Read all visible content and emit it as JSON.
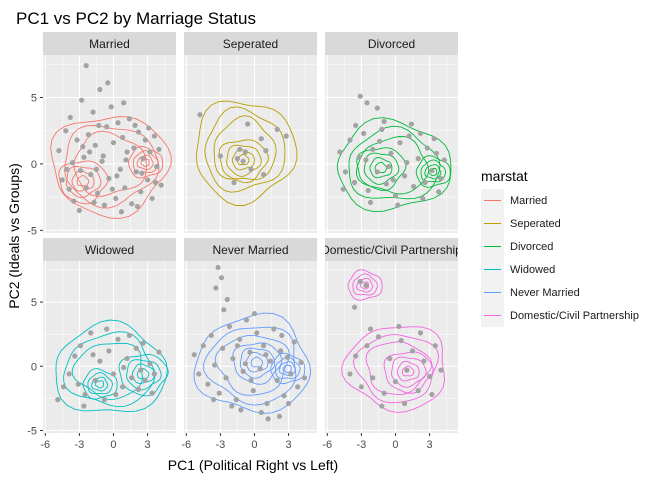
{
  "chart_data": {
    "type": "scatter",
    "title": "PC1 vs PC2 by Marriage Status",
    "xlabel": "PC1 (Political Right vs Left)",
    "ylabel": "PC2 (Ideals vs Groups)",
    "xlim": [
      -6.2,
      5.5
    ],
    "ylim": [
      -5.2,
      8.2
    ],
    "x_ticks": [
      -6,
      -3,
      0,
      3
    ],
    "x_tick_labels": [
      "-6",
      "-3",
      "0",
      "3"
    ],
    "y_ticks": [
      -5,
      0,
      5
    ],
    "y_tick_labels": [
      "-5",
      "0",
      "5"
    ],
    "grid": true,
    "layout": "facet_wrap 2 rows x 3 columns, shared axes",
    "legend": {
      "title": "marstat",
      "placement": "right",
      "entries": [
        {
          "label": "Married",
          "color": "#F8766D"
        },
        {
          "label": "Seperated",
          "color": "#B79F00"
        },
        {
          "label": "Divorced",
          "color": "#00BA38"
        },
        {
          "label": "Widowed",
          "color": "#00BFC4"
        },
        {
          "label": "Never Married",
          "color": "#619CFF"
        },
        {
          "label": "Domestic/Civil Partnership",
          "color": "#F564E3"
        }
      ]
    },
    "point_color": "#a3a3a3",
    "facets": [
      {
        "label": "Married",
        "color": "#F8766D",
        "density_centers": [
          {
            "x": -2.7,
            "y": -1.3
          },
          {
            "x": 2.8,
            "y": 0.1
          }
        ],
        "density_extent": {
          "x": [
            -5.5,
            4.8
          ],
          "y": [
            -3.8,
            3.7
          ]
        },
        "points": [
          [
            -4.8,
            1.0
          ],
          [
            -4.2,
            2.5
          ],
          [
            -4.5,
            -1.2
          ],
          [
            -3.8,
            3.5
          ],
          [
            -3.5,
            -2.8
          ],
          [
            -3.2,
            1.8
          ],
          [
            -3.0,
            -3.5
          ],
          [
            -2.8,
            4.8
          ],
          [
            -2.6,
            0.5
          ],
          [
            -2.4,
            -1.8
          ],
          [
            -2.2,
            2.2
          ],
          [
            -2.0,
            -0.8
          ],
          [
            -1.8,
            3.9
          ],
          [
            -1.6,
            1.4
          ],
          [
            -1.4,
            -2.2
          ],
          [
            -1.2,
            5.6
          ],
          [
            -1.0,
            0.2
          ],
          [
            -0.8,
            -3.1
          ],
          [
            -0.6,
            2.8
          ],
          [
            -0.4,
            -1.1
          ],
          [
            -0.2,
            4.3
          ],
          [
            0.0,
            1.6
          ],
          [
            0.2,
            -2.6
          ],
          [
            0.4,
            3.1
          ],
          [
            0.6,
            -0.4
          ],
          [
            0.8,
            2.0
          ],
          [
            1.0,
            -1.8
          ],
          [
            1.2,
            0.9
          ],
          [
            1.4,
            3.4
          ],
          [
            1.6,
            -3.0
          ],
          [
            1.8,
            1.2
          ],
          [
            2.0,
            -0.6
          ],
          [
            2.2,
            2.4
          ],
          [
            2.4,
            -2.1
          ],
          [
            2.6,
            0.4
          ],
          [
            2.8,
            1.8
          ],
          [
            3.0,
            -1.2
          ],
          [
            3.2,
            0.9
          ],
          [
            3.4,
            -2.6
          ],
          [
            3.6,
            2.1
          ],
          [
            3.8,
            -0.2
          ],
          [
            4.0,
            1.1
          ],
          [
            4.2,
            -1.6
          ],
          [
            -3.6,
            0.1
          ],
          [
            -2.9,
            -0.5
          ],
          [
            -2.1,
            0.9
          ],
          [
            -1.5,
            -0.4
          ],
          [
            -0.9,
            0.6
          ],
          [
            0.3,
            -0.9
          ],
          [
            1.1,
            0.3
          ],
          [
            -2.4,
            7.4
          ],
          [
            -3.9,
            -1.9
          ],
          [
            -1.7,
            -2.9
          ],
          [
            0.9,
            4.6
          ],
          [
            2.1,
            -3.2
          ],
          [
            -0.5,
            6.1
          ],
          [
            -1.3,
            2.9
          ],
          [
            0.7,
            -3.6
          ],
          [
            1.9,
            2.9
          ],
          [
            -4.1,
            -0.4
          ],
          [
            3.1,
            2.7
          ],
          [
            3.7,
            -1.4
          ],
          [
            -2.7,
            1.3
          ],
          [
            -0.1,
            -1.9
          ],
          [
            2.5,
            -0.7
          ]
        ]
      },
      {
        "label": "Seperated",
        "color": "#B79F00",
        "density_centers": [
          {
            "x": -1.0,
            "y": 0.3
          }
        ],
        "density_extent": {
          "x": [
            -5.3,
            3.5
          ],
          "y": [
            -2.8,
            4.8
          ]
        },
        "points": [
          [
            -4.8,
            3.7
          ],
          [
            -1.3,
            1.1
          ],
          [
            -1.5,
            0.4
          ],
          [
            -1.0,
            0.2
          ],
          [
            -0.8,
            0.9
          ],
          [
            -0.3,
            -0.4
          ],
          [
            0.6,
            1.9
          ],
          [
            1.0,
            1.0
          ],
          [
            -3.0,
            0.6
          ],
          [
            0.8,
            -0.8
          ],
          [
            -0.6,
            3.0
          ],
          [
            2.0,
            2.6
          ],
          [
            2.8,
            2.1
          ],
          [
            -1.8,
            -1.4
          ]
        ]
      },
      {
        "label": "Divorced",
        "color": "#00BA38",
        "density_centers": [
          {
            "x": -1.3,
            "y": -0.3
          },
          {
            "x": 3.3,
            "y": -0.6
          }
        ],
        "density_extent": {
          "x": [
            -5.2,
            4.8
          ],
          "y": [
            -3.5,
            3.2
          ]
        },
        "points": [
          [
            -3.1,
            5.1
          ],
          [
            -2.5,
            4.6
          ],
          [
            -1.6,
            4.2
          ],
          [
            -4.9,
            0.9
          ],
          [
            -4.4,
            -0.6
          ],
          [
            -4.0,
            1.8
          ],
          [
            -3.6,
            -1.4
          ],
          [
            -3.2,
            0.5
          ],
          [
            -2.8,
            2.3
          ],
          [
            -2.4,
            -2.0
          ],
          [
            -2.0,
            1.1
          ],
          [
            -1.6,
            -0.6
          ],
          [
            -1.2,
            2.6
          ],
          [
            -0.8,
            -1.5
          ],
          [
            -0.4,
            0.8
          ],
          [
            0.0,
            -2.4
          ],
          [
            0.4,
            1.6
          ],
          [
            0.8,
            -0.9
          ],
          [
            1.2,
            2.1
          ],
          [
            1.6,
            -1.7
          ],
          [
            2.0,
            0.4
          ],
          [
            2.4,
            -2.6
          ],
          [
            2.8,
            1.2
          ],
          [
            3.2,
            -0.5
          ],
          [
            3.6,
            0.8
          ],
          [
            4.0,
            -1.1
          ],
          [
            4.3,
            0.3
          ],
          [
            -3.5,
            2.9
          ],
          [
            -2.2,
            -2.9
          ],
          [
            -1.0,
            3.2
          ],
          [
            0.2,
            -3.1
          ],
          [
            1.4,
            3.0
          ],
          [
            2.6,
            -1.4
          ],
          [
            3.4,
            1.9
          ],
          [
            -0.6,
            -0.2
          ],
          [
            1.0,
            0.1
          ],
          [
            -4.6,
            -1.9
          ],
          [
            -2.6,
            0.3
          ],
          [
            2.2,
            2.3
          ],
          [
            3.8,
            -2.1
          ],
          [
            -0.2,
            -1.2
          ],
          [
            -1.4,
            1.7
          ]
        ]
      },
      {
        "label": "Widowed",
        "color": "#00BFC4",
        "density_centers": [
          {
            "x": 2.6,
            "y": -0.6
          },
          {
            "x": -1.2,
            "y": -1.4
          }
        ],
        "density_extent": {
          "x": [
            -5.2,
            4.6
          ],
          "y": [
            -3.8,
            3.2
          ]
        },
        "points": [
          [
            -4.9,
            -2.6
          ],
          [
            -4.4,
            -1.6
          ],
          [
            -3.9,
            -0.6
          ],
          [
            -3.4,
            0.8
          ],
          [
            -2.9,
            1.6
          ],
          [
            -2.5,
            -2.2
          ],
          [
            -2.0,
            2.6
          ],
          [
            -1.6,
            -1.1
          ],
          [
            -1.2,
            0.4
          ],
          [
            -0.8,
            -2.6
          ],
          [
            -0.4,
            1.2
          ],
          [
            0.0,
            -0.6
          ],
          [
            0.4,
            2.1
          ],
          [
            0.8,
            -1.6
          ],
          [
            1.2,
            0.6
          ],
          [
            1.6,
            -0.9
          ],
          [
            2.0,
            1.4
          ],
          [
            2.4,
            -0.3
          ],
          [
            2.8,
            -1.1
          ],
          [
            3.2,
            0.2
          ],
          [
            3.6,
            -0.6
          ],
          [
            4.0,
            1.1
          ],
          [
            -3.1,
            -1.4
          ],
          [
            -1.8,
            0.9
          ],
          [
            0.2,
            -2.2
          ],
          [
            1.4,
            2.4
          ],
          [
            2.6,
            1.8
          ],
          [
            3.4,
            -2.1
          ],
          [
            -2.6,
            -3.1
          ],
          [
            -0.6,
            2.9
          ],
          [
            0.9,
            -0.1
          ],
          [
            2.2,
            -1.8
          ]
        ]
      },
      {
        "label": "Never Married",
        "color": "#619CFF",
        "density_centers": [
          {
            "x": 0.2,
            "y": 0.3
          },
          {
            "x": 2.9,
            "y": -0.2
          }
        ],
        "density_extent": {
          "x": [
            -5.1,
            4.9
          ],
          "y": [
            -3.6,
            3.9
          ]
        },
        "points": [
          [
            -3.2,
            7.7
          ],
          [
            -2.9,
            6.9
          ],
          [
            -3.4,
            6.1
          ],
          [
            -2.4,
            5.2
          ],
          [
            -2.7,
            4.4
          ],
          [
            -5.3,
            0.9
          ],
          [
            -4.9,
            -0.6
          ],
          [
            -4.5,
            1.6
          ],
          [
            -4.1,
            -1.4
          ],
          [
            -3.8,
            2.4
          ],
          [
            -3.5,
            0.1
          ],
          [
            -3.1,
            -2.1
          ],
          [
            -2.8,
            1.4
          ],
          [
            -2.5,
            -0.9
          ],
          [
            -2.2,
            3.1
          ],
          [
            -1.9,
            0.6
          ],
          [
            -1.6,
            -2.6
          ],
          [
            -1.3,
            2.1
          ],
          [
            -1.0,
            -0.4
          ],
          [
            -0.7,
            3.6
          ],
          [
            -0.4,
            1.1
          ],
          [
            -0.1,
            -1.9
          ],
          [
            0.2,
            2.6
          ],
          [
            0.5,
            -0.2
          ],
          [
            0.8,
            1.6
          ],
          [
            1.1,
            -2.9
          ],
          [
            1.4,
            0.4
          ],
          [
            1.7,
            2.9
          ],
          [
            2.0,
            -1.1
          ],
          [
            2.3,
            1.2
          ],
          [
            2.6,
            -2.3
          ],
          [
            2.9,
            0.7
          ],
          [
            3.2,
            -0.6
          ],
          [
            3.5,
            1.9
          ],
          [
            3.8,
            -1.6
          ],
          [
            4.1,
            0.3
          ],
          [
            4.4,
            -0.9
          ],
          [
            -1.2,
            -3.4
          ],
          [
            0.6,
            -3.6
          ],
          [
            1.2,
            -4.1
          ],
          [
            2.2,
            -3.9
          ],
          [
            -2.0,
            -3.1
          ],
          [
            0.0,
            4.1
          ],
          [
            -0.3,
            -1.1
          ],
          [
            1.0,
            0.9
          ],
          [
            -1.5,
            1.6
          ],
          [
            2.4,
            2.4
          ],
          [
            3.0,
            -2.9
          ],
          [
            -3.6,
            -2.6
          ],
          [
            -0.8,
            0.2
          ]
        ]
      },
      {
        "label": "Domestic/Civil Partnership",
        "color": "#F564E3",
        "density_centers": [
          {
            "x": 1.1,
            "y": -0.4
          },
          {
            "x": -2.7,
            "y": 6.3
          }
        ],
        "density_extent": {
          "x": [
            -4.3,
            4.6
          ],
          "y": [
            -3.4,
            3.2
          ]
        },
        "points": [
          [
            -3.1,
            6.6
          ],
          [
            -2.6,
            6.3
          ],
          [
            -3.6,
            4.6
          ],
          [
            -4.0,
            -0.6
          ],
          [
            -3.5,
            0.8
          ],
          [
            -3.0,
            -1.6
          ],
          [
            -2.5,
            1.6
          ],
          [
            -2.0,
            -0.9
          ],
          [
            -1.5,
            2.3
          ],
          [
            -1.0,
            -2.1
          ],
          [
            -0.5,
            0.6
          ],
          [
            0.0,
            -1.2
          ],
          [
            0.5,
            2.0
          ],
          [
            1.0,
            -0.3
          ],
          [
            1.5,
            1.2
          ],
          [
            2.0,
            -1.9
          ],
          [
            2.5,
            0.4
          ],
          [
            3.0,
            -0.8
          ],
          [
            3.5,
            1.6
          ],
          [
            4.0,
            -0.3
          ],
          [
            -1.2,
            -3.1
          ],
          [
            0.8,
            -2.9
          ],
          [
            2.2,
            2.6
          ],
          [
            -2.2,
            2.9
          ],
          [
            3.2,
            -2.2
          ],
          [
            0.3,
            3.1
          ]
        ]
      }
    ]
  }
}
